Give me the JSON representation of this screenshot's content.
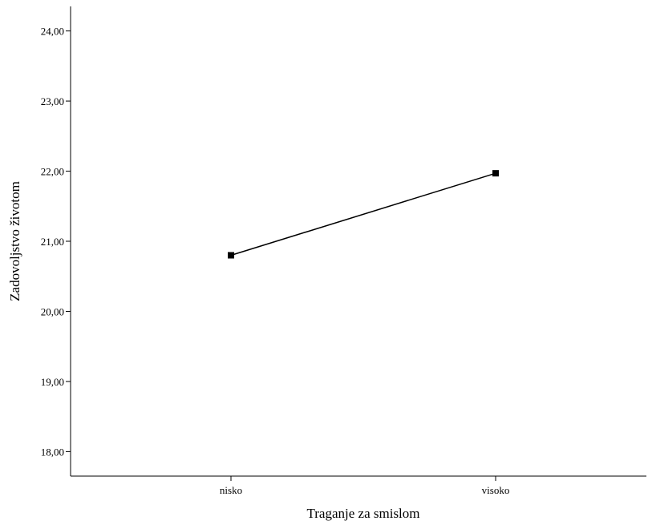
{
  "chart_data": {
    "type": "line",
    "title": "",
    "xlabel": "Traganje za smislom",
    "ylabel": "Zadovoljstvo životom",
    "categories": [
      "nisko",
      "visoko"
    ],
    "series": [
      {
        "values": [
          20.8,
          21.97
        ],
        "color": "#000000",
        "marker": "square"
      }
    ],
    "ylim": [
      17.65,
      24.35
    ],
    "yticks": [
      18,
      19,
      20,
      21,
      22,
      23,
      24
    ],
    "ytick_labels": [
      "18,00",
      "19,00",
      "20,00",
      "21,00",
      "22,00",
      "23,00",
      "24,00"
    ],
    "grid": false,
    "legend": "none"
  }
}
